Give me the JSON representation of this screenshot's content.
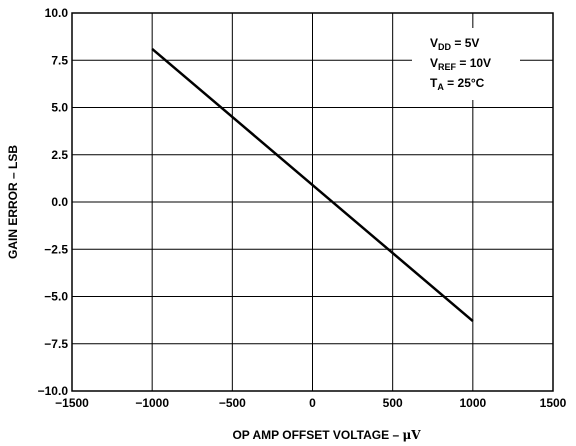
{
  "chart_data": {
    "type": "line",
    "xlabel_main": "OP AMP OFFSET VOLTAGE – ",
    "xlabel_unit": "μV",
    "ylabel": "GAIN ERROR – LSB",
    "xlim": [
      -1500,
      1500
    ],
    "ylim": [
      -10,
      10
    ],
    "x_ticks": [
      -1500,
      -1000,
      -500,
      0,
      500,
      1000,
      1500
    ],
    "x_tick_labels": [
      "−1500",
      "−1000",
      "−500",
      "0",
      "500",
      "1000",
      "1500"
    ],
    "y_ticks": [
      10,
      7.5,
      5,
      2.5,
      0,
      -2.5,
      -5,
      -7.5,
      -10
    ],
    "y_tick_labels": [
      "10.0",
      "7.5",
      "5.0",
      "2.5",
      "0.0",
      "−2.5",
      "−5.0",
      "−7.5",
      "−10.0"
    ],
    "grid": true,
    "series": [
      {
        "x": [
          -1000,
          1000
        ],
        "y": [
          8.1,
          -6.3
        ]
      }
    ],
    "annotation_lines": [
      {
        "label": "V",
        "sub": "DD",
        "tail": " = 5V"
      },
      {
        "label": "V",
        "sub": "REF",
        "tail": " = 10V"
      },
      {
        "label": "T",
        "sub": "A",
        "tail": " = 25°C"
      }
    ],
    "annotation_position": "top-right"
  }
}
